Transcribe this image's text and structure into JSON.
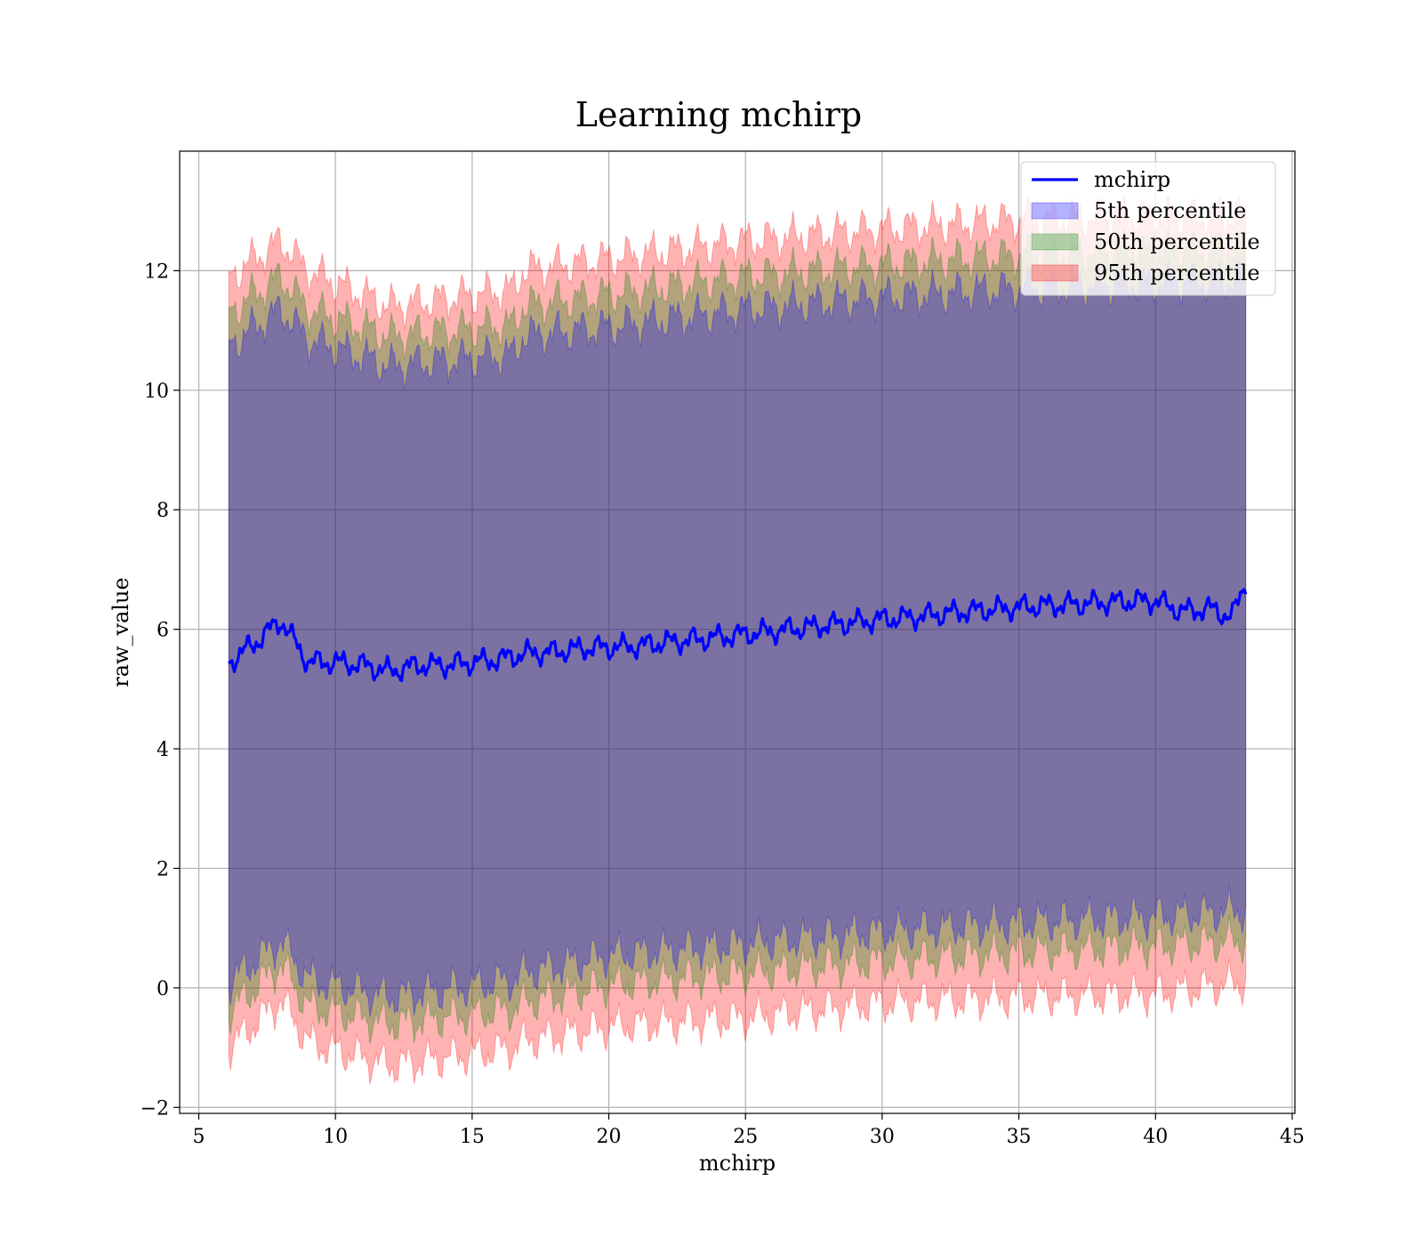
{
  "chart_data": {
    "type": "line",
    "title": "Learning mchirp",
    "xlabel": "mchirp",
    "ylabel": "raw_value",
    "xlim": [
      4.3,
      45.1
    ],
    "ylim": [
      -2.1,
      14.0
    ],
    "xticks": [
      5,
      10,
      15,
      20,
      25,
      30,
      35,
      40,
      45
    ],
    "yticks": [
      -2,
      0,
      2,
      4,
      6,
      8,
      10,
      12
    ],
    "grid": true,
    "legend_position": "top-right",
    "x_range": [
      6.1,
      43.3
    ],
    "line": {
      "name": "mchirp",
      "color": "#0000ff",
      "x": [
        6.1,
        7.0,
        8.0,
        8.5,
        9.0,
        10.0,
        11.0,
        12.0,
        13.0,
        14.0,
        15.0,
        16.0,
        17.0,
        18.0,
        19.0,
        20.0,
        21.0,
        22.0,
        23.0,
        24.0,
        25.0,
        26.0,
        27.0,
        28.0,
        29.0,
        30.0,
        31.0,
        32.0,
        33.0,
        34.0,
        35.0,
        36.0,
        37.0,
        38.0,
        39.0,
        40.0,
        41.0,
        42.0,
        42.8,
        43.3
      ],
      "y": [
        5.45,
        5.75,
        6.15,
        5.8,
        5.45,
        5.45,
        5.4,
        5.3,
        5.4,
        5.4,
        5.45,
        5.5,
        5.6,
        5.62,
        5.68,
        5.7,
        5.72,
        5.78,
        5.82,
        5.87,
        5.92,
        5.97,
        6.02,
        6.07,
        6.12,
        6.17,
        6.2,
        6.25,
        6.3,
        6.33,
        6.37,
        6.4,
        6.42,
        6.45,
        6.47,
        6.48,
        6.3,
        6.35,
        6.2,
        6.8
      ]
    },
    "bands": [
      {
        "name": "95th percentile",
        "color": "#ff0000",
        "x": [
          6.1,
          8.0,
          9.0,
          12.0,
          16.6,
          16.8,
          20.0,
          25.0,
          30.0,
          35.0,
          40.0,
          43.3
        ],
        "upper": [
          11.9,
          12.5,
          12.0,
          11.4,
          11.7,
          12.0,
          12.2,
          12.5,
          12.7,
          12.85,
          12.9,
          12.9
        ],
        "lower": [
          -1.0,
          -0.2,
          -0.9,
          -1.3,
          -1.0,
          -0.9,
          -0.65,
          -0.5,
          -0.25,
          -0.15,
          -0.1,
          0.1
        ]
      },
      {
        "name": "50th percentile",
        "color": "#008000",
        "x": [
          6.1,
          8.0,
          9.0,
          12.0,
          16.6,
          16.8,
          20.0,
          25.0,
          30.0,
          35.0,
          40.0,
          43.3
        ],
        "upper": [
          11.3,
          11.9,
          11.35,
          10.9,
          11.1,
          11.4,
          11.6,
          11.9,
          12.1,
          12.25,
          12.35,
          12.35
        ],
        "lower": [
          -0.4,
          0.4,
          -0.3,
          -0.6,
          -0.35,
          -0.25,
          0.05,
          0.25,
          0.45,
          0.6,
          0.7,
          0.8
        ]
      },
      {
        "name": "5th percentile",
        "color": "#0000ff",
        "x": [
          6.1,
          8.0,
          9.0,
          12.0,
          16.6,
          16.8,
          20.0,
          25.0,
          30.0,
          35.0,
          40.0,
          43.3
        ],
        "upper": [
          10.75,
          11.35,
          10.85,
          10.4,
          10.6,
          10.9,
          11.05,
          11.35,
          11.55,
          11.7,
          11.8,
          11.85
        ],
        "lower": [
          0.1,
          0.8,
          0.15,
          -0.15,
          0.15,
          0.25,
          0.55,
          0.75,
          0.95,
          1.1,
          1.2,
          1.3
        ]
      }
    ],
    "legend": [
      "mchirp",
      "5th percentile",
      "50th percentile",
      "95th percentile"
    ]
  }
}
